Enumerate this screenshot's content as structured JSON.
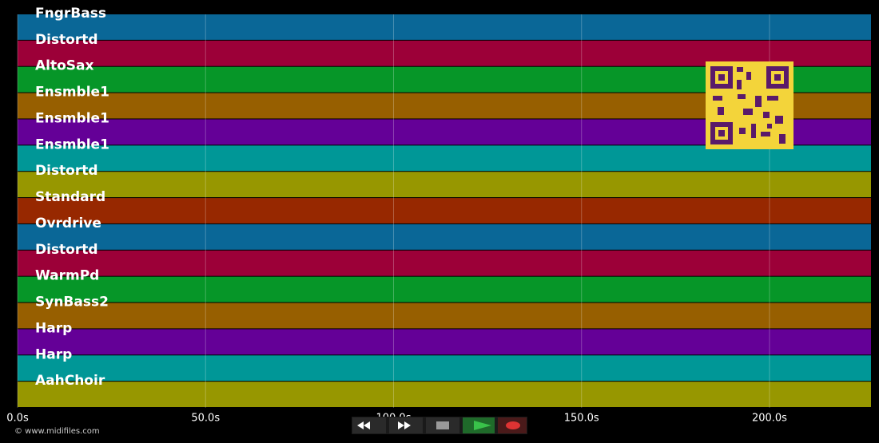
{
  "timeline": {
    "tracks": [
      "FngrBass",
      "Distortd",
      "AltoSax",
      "Ensmble1",
      "Ensmble1",
      "Ensmble1",
      "Distortd",
      "Standard",
      "Ovrdrive",
      "Distortd",
      "WarmPd",
      "SynBass2",
      "Harp",
      "Harp",
      "AahChoir"
    ],
    "track_colors": [
      "#0a6797",
      "#9c0038",
      "#069628",
      "#975f00",
      "#640097",
      "#009797",
      "#979700",
      "#972800",
      "#0a6797",
      "#9c0038",
      "#069628",
      "#975f00",
      "#640097",
      "#009797",
      "#979700"
    ],
    "xlim": [
      0,
      227
    ],
    "xticks": [
      {
        "value": 0,
        "label": "0.0s"
      },
      {
        "value": 50,
        "label": "50.0s"
      },
      {
        "value": 100,
        "label": "100.0s"
      },
      {
        "value": 150,
        "label": "150.0s"
      },
      {
        "value": 200,
        "label": "200.0s"
      }
    ],
    "footer": "© www.midifiles.com"
  }
}
